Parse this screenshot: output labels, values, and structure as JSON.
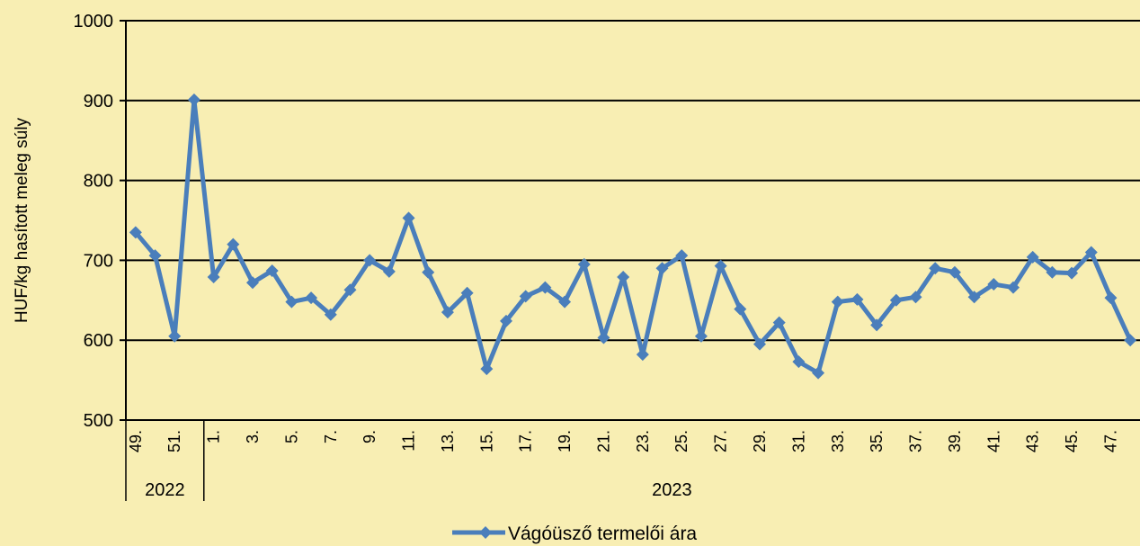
{
  "chart_data": {
    "type": "line",
    "y_label": "HUF/kg hasított meleg súly",
    "categories": [
      "49.",
      null,
      "51.",
      null,
      "1.",
      null,
      "3.",
      null,
      "5.",
      null,
      "7.",
      null,
      "9.",
      null,
      "11.",
      null,
      "13.",
      null,
      "15.",
      null,
      "17.",
      null,
      "19.",
      null,
      "21.",
      null,
      "23.",
      null,
      "25.",
      null,
      "27.",
      null,
      "29.",
      null,
      "31.",
      null,
      "33.",
      null,
      "35.",
      null,
      "37.",
      null,
      "39.",
      null,
      "41.",
      null,
      "43.",
      null,
      "45.",
      null,
      "47.",
      null
    ],
    "x_groups": [
      {
        "label": "2022",
        "count": 4
      },
      {
        "label": "2023",
        "count": 48
      }
    ],
    "series": [
      {
        "name": "Vágóüsző termelői ára",
        "color": "#4a7ebb",
        "values": [
          735,
          706,
          605,
          901,
          679,
          720,
          672,
          687,
          648,
          653,
          632,
          663,
          700,
          686,
          753,
          685,
          635,
          659,
          564,
          624,
          655,
          666,
          648,
          695,
          603,
          679,
          582,
          690,
          706,
          605,
          693,
          639,
          595,
          622,
          573,
          559,
          648,
          651,
          619,
          650,
          654,
          690,
          685,
          654,
          670,
          666,
          704,
          685,
          684,
          710,
          653,
          600
        ]
      }
    ],
    "ylim": [
      500,
      1000
    ],
    "yticks": [
      500,
      600,
      700,
      800,
      900,
      1000
    ],
    "grid": true,
    "legend": "bottom"
  }
}
